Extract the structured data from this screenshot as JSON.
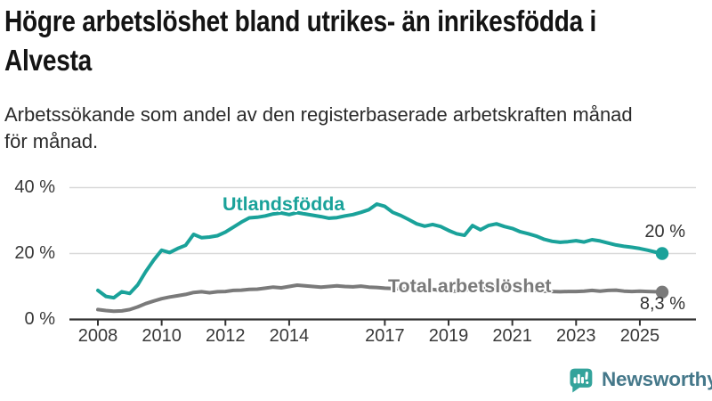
{
  "header": {
    "title_lines": [
      "Högre arbetslöshet bland utrikes- än inrikesfödda i",
      "Alvesta"
    ],
    "subtitle_lines": [
      "Arbetssökande som andel av den registerbaserade arbetskraften månad",
      "för månad."
    ]
  },
  "chart_data": {
    "type": "line",
    "title": "Högre arbetslöshet bland utrikes- än inrikesfödda i Alvesta",
    "subtitle": "Arbetssökande som andel av den registerbaserade arbetskraften månad för månad.",
    "unit": "%",
    "grid": "horizontal",
    "legend_position": "inline-labels-on-lines",
    "xlim": [
      2007.1,
      2026.8
    ],
    "ylim": [
      0,
      42
    ],
    "xticks": {
      "values": [
        2008,
        2010,
        2012,
        2014,
        2017,
        2019,
        2021,
        2023,
        2025
      ],
      "labels": [
        "2008",
        "2010",
        "2012",
        "2014",
        "2017",
        "2019",
        "2021",
        "2023",
        "2025"
      ]
    },
    "yticks": {
      "values": [
        0,
        20,
        40
      ],
      "labels": [
        "0 %",
        "20 %",
        "40 %"
      ]
    },
    "x": [
      2008,
      2008.25,
      2008.5,
      2008.75,
      2009,
      2009.25,
      2009.5,
      2009.75,
      2010,
      2010.25,
      2010.5,
      2010.75,
      2011,
      2011.25,
      2011.5,
      2011.75,
      2012,
      2012.25,
      2012.5,
      2012.75,
      2013,
      2013.25,
      2013.5,
      2013.75,
      2014,
      2014.25,
      2014.5,
      2014.75,
      2015,
      2015.25,
      2015.5,
      2015.75,
      2016,
      2016.25,
      2016.5,
      2016.75,
      2017,
      2017.25,
      2017.5,
      2017.75,
      2018,
      2018.25,
      2018.5,
      2018.75,
      2019,
      2019.25,
      2019.5,
      2019.75,
      2020,
      2020.25,
      2020.5,
      2020.75,
      2021,
      2021.25,
      2021.5,
      2021.75,
      2022,
      2022.25,
      2022.5,
      2022.75,
      2023,
      2023.25,
      2023.5,
      2023.75,
      2024,
      2024.25,
      2024.5,
      2024.75,
      2025,
      2025.25,
      2025.5,
      2025.7
    ],
    "series": [
      {
        "name": "Utlandsfödda",
        "color": "#1aa29a",
        "end_value_label": "20 %",
        "end_value": 20,
        "values": [
          8.8,
          7.0,
          6.6,
          8.4,
          7.9,
          10.5,
          14.5,
          18.0,
          21.0,
          20.3,
          21.5,
          22.5,
          25.8,
          24.8,
          25.0,
          25.4,
          26.5,
          28.0,
          29.5,
          30.8,
          31.0,
          31.4,
          32.0,
          32.3,
          31.8,
          32.4,
          32.0,
          31.6,
          31.2,
          30.7,
          30.9,
          31.4,
          31.8,
          32.5,
          33.3,
          35.0,
          34.3,
          32.5,
          31.5,
          30.3,
          29.0,
          28.3,
          28.8,
          28.2,
          27.0,
          26.0,
          25.5,
          28.5,
          27.2,
          28.5,
          29.0,
          28.2,
          27.6,
          26.6,
          26.0,
          25.3,
          24.3,
          23.7,
          23.4,
          23.6,
          23.9,
          23.5,
          24.2,
          23.8,
          23.2,
          22.6,
          22.2,
          21.9,
          21.5,
          21.0,
          20.4,
          20.0
        ]
      },
      {
        "name": "Total arbetslöshet",
        "color": "#7a7a7a",
        "end_value_label": "8,3 %",
        "end_value": 8.3,
        "values": [
          3.0,
          2.7,
          2.5,
          2.6,
          3.0,
          3.8,
          4.8,
          5.6,
          6.3,
          6.8,
          7.2,
          7.6,
          8.2,
          8.4,
          8.1,
          8.4,
          8.5,
          8.8,
          8.9,
          9.1,
          9.2,
          9.5,
          9.8,
          9.6,
          10.0,
          10.4,
          10.2,
          10.0,
          9.8,
          10.0,
          10.2,
          10.0,
          9.9,
          10.1,
          9.8,
          9.7,
          9.5,
          9.4,
          9.3,
          9.2,
          9.0,
          8.9,
          9.1,
          8.8,
          8.7,
          8.6,
          8.9,
          9.3,
          9.1,
          9.9,
          10.1,
          9.8,
          9.5,
          9.2,
          9.0,
          8.8,
          8.6,
          8.5,
          8.4,
          8.5,
          8.5,
          8.6,
          8.8,
          8.6,
          8.8,
          8.9,
          8.6,
          8.5,
          8.6,
          8.5,
          8.4,
          8.3
        ]
      }
    ]
  },
  "branding": {
    "logo_text": "Newsworthy",
    "logo_icon": "bar-chart-speech-bubble-icon",
    "icon_color": "#33a39b",
    "text_color": "#45788a"
  },
  "colors": {
    "background": "#ffffff",
    "grid_line": "#d9d9d9",
    "axis_line": "#333333",
    "axis_text": "#383838",
    "title_text": "#141414",
    "subtitle_text": "#2b2b2b",
    "end_label_text": "#333333"
  }
}
